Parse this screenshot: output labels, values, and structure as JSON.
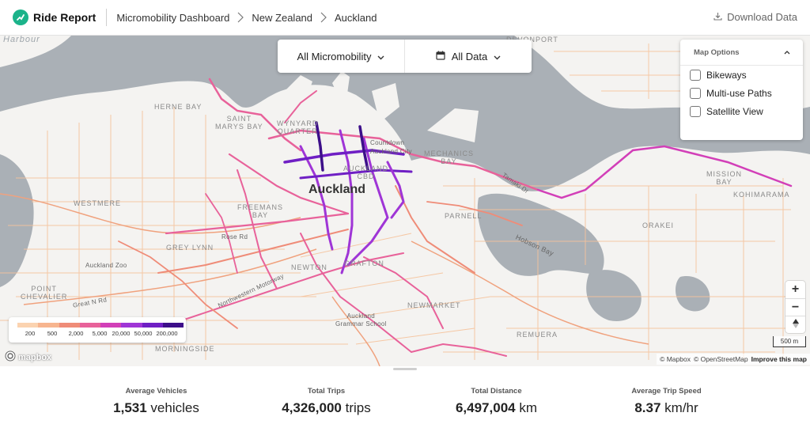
{
  "header": {
    "brand": "Ride Report",
    "breadcrumbs": [
      "Micromobility Dashboard",
      "New Zealand",
      "Auckland"
    ],
    "download_label": "Download Data"
  },
  "filters": {
    "mode_label": "All Micromobility",
    "date_label": "All Data"
  },
  "map_options": {
    "title": "Map Options",
    "items": [
      {
        "label": "Bikeways",
        "checked": false
      },
      {
        "label": "Multi-use Paths",
        "checked": false
      },
      {
        "label": "Satellite View",
        "checked": false
      }
    ]
  },
  "map_labels": {
    "harbour": "Harbour",
    "devonport": "DEVONPORT",
    "herne_bay": "HERNE BAY",
    "saint_marys_bay": "SAINT\nMARYS BAY",
    "wynyard_quarter": "WYNYARD\nQUARTER",
    "countdown": "Countdown",
    "auckland_city": "Auckland City",
    "mechanics_bay": "MECHANICS\nBAY",
    "tamaki_dr": "Tamaki Dr",
    "mission_bay": "MISSION\nBAY",
    "kohimarama": "KOHIMARAMA",
    "auckland_cbd": "AUCKLAND\nCBD",
    "auckland": "Auckland",
    "westmere": "WESTMERE",
    "freemans_bay": "FREEMANS\nBAY",
    "parnell": "PARNELL",
    "orakei": "ORAKEI",
    "rose_rd": "Rose Rd",
    "grey_lynn": "GREY LYNN",
    "hobson_bay": "Hobson Bay",
    "auckland_zoo": "Auckland Zoo",
    "grafton": "GRAFTON",
    "newton": "NEWTON",
    "point_chevalier": "POINT\nCHEVALIER",
    "great_n_rd": "Great N Rd",
    "northwestern_motorway": "Northwestern Motorway",
    "newmarket": "NEWMARKET",
    "grammar_school": "Auckland\nGrammar School",
    "remuera": "REMUERA",
    "morningside": "MORNINGSIDE"
  },
  "legend": {
    "labels": [
      "200",
      "500",
      "2,000",
      "5,000",
      "20,000",
      "50,000",
      "200,000"
    ],
    "colors": [
      "#fbd3b0",
      "#f7b58f",
      "#ef8c78",
      "#e8629a",
      "#d23fb8",
      "#9f35d6",
      "#6f1fc4",
      "#3d0f8a"
    ]
  },
  "zoom": {
    "in": "+",
    "out": "−"
  },
  "scale_label": "500 m",
  "mapbox_logo": "mapbox",
  "attribution": {
    "mapbox": "© Mapbox",
    "osm": "© OpenStreetMap",
    "improve": "Improve this map"
  },
  "stats": [
    {
      "label": "Average Vehicles",
      "value": "1,531",
      "unit": "vehicles"
    },
    {
      "label": "Total Trips",
      "value": "4,326,000",
      "unit": "trips"
    },
    {
      "label": "Total Distance",
      "value": "6,497,004",
      "unit": "km"
    },
    {
      "label": "Average Trip Speed",
      "value": "8.37",
      "unit": "km/hr"
    }
  ],
  "colors": {
    "brand": "#1bb38a",
    "water": "#aab0b6",
    "land": "#f4f3f1"
  }
}
